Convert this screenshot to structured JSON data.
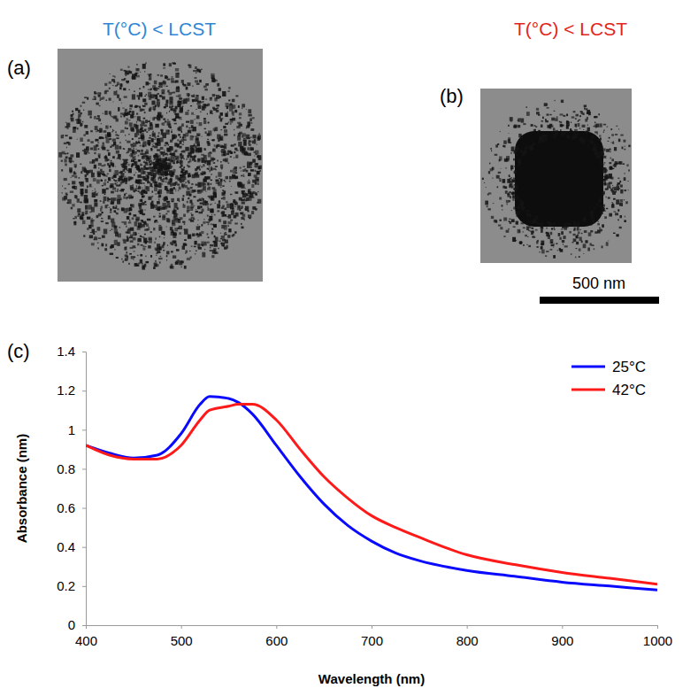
{
  "panels": [
    {
      "letter": "(a)",
      "title": "T(°C) < LCST",
      "color": "#2f86d4"
    },
    {
      "letter": "(b)",
      "title": "T(°C) < LCST",
      "color": "#e3241b",
      "scale_bar": "500 nm"
    },
    {
      "letter": "(c)"
    }
  ],
  "chart_data": {
    "type": "line",
    "x_label": "Wavelength (nm)",
    "y_label": "Absorbance (nm)",
    "x": [
      400,
      425,
      450,
      475,
      500,
      520,
      530,
      550,
      560,
      575,
      600,
      625,
      650,
      675,
      700,
      725,
      750,
      800,
      850,
      900,
      950,
      1000
    ],
    "series": [
      {
        "name": "25°C",
        "color": "#0a0aff",
        "values": [
          0.92,
          0.88,
          0.855,
          0.87,
          0.98,
          1.13,
          1.17,
          1.16,
          1.14,
          1.08,
          0.92,
          0.76,
          0.62,
          0.51,
          0.43,
          0.37,
          0.33,
          0.28,
          0.25,
          0.22,
          0.2,
          0.18
        ]
      },
      {
        "name": "42°C",
        "color": "#ff1a1a",
        "values": [
          0.92,
          0.87,
          0.85,
          0.85,
          0.92,
          1.05,
          1.1,
          1.12,
          1.13,
          1.13,
          1.05,
          0.9,
          0.76,
          0.65,
          0.56,
          0.5,
          0.45,
          0.36,
          0.31,
          0.27,
          0.24,
          0.21
        ]
      }
    ],
    "xlim": [
      400,
      1000
    ],
    "xticks": [
      400,
      500,
      600,
      700,
      800,
      900,
      1000
    ],
    "ylim": [
      0,
      1.4
    ],
    "yticks": [
      0,
      0.2,
      0.4,
      0.6,
      0.8,
      1,
      1.2,
      1.4
    ],
    "grid": false,
    "legend": "top-right"
  }
}
